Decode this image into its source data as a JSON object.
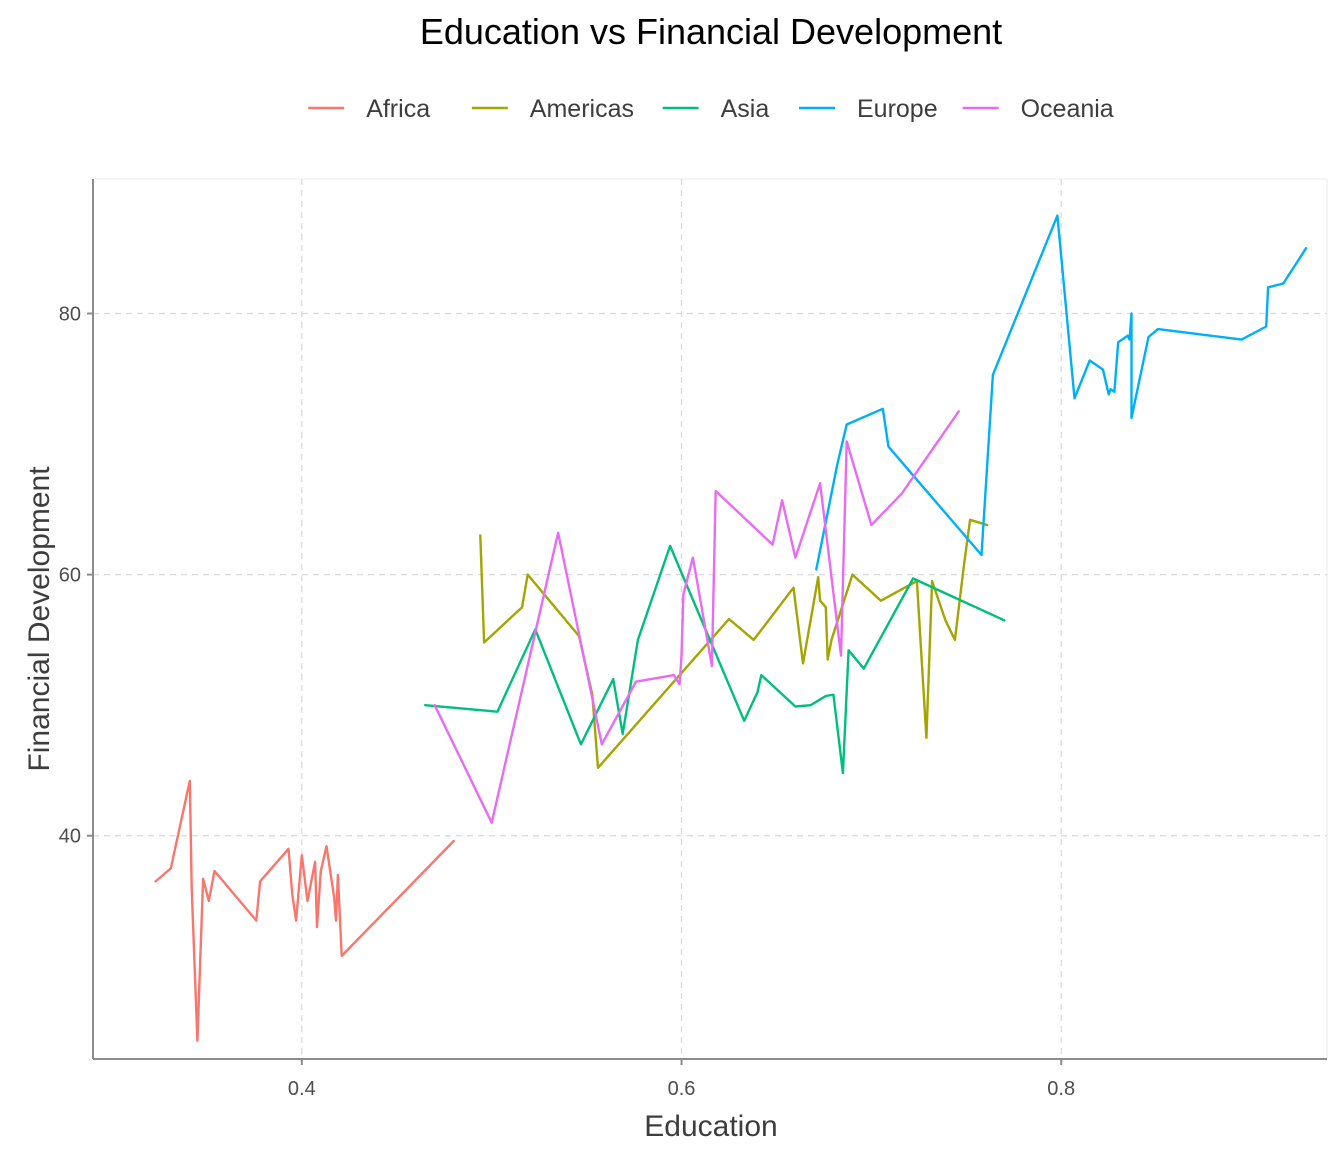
{
  "chart_data": {
    "type": "line",
    "title": "Education vs Financial Development",
    "xlabel": "Education",
    "ylabel": "Financial Development",
    "xlim": [
      0.29,
      0.94
    ],
    "ylim": [
      22.9,
      90.3
    ],
    "xticks": [
      0.4,
      0.6,
      0.8
    ],
    "xtick_labels": [
      "0.4",
      "0.6",
      "0.8"
    ],
    "yticks": [
      40,
      60,
      80
    ],
    "ytick_labels": [
      "40",
      "60",
      "80"
    ],
    "grid": true,
    "legend_position": "top",
    "series": [
      {
        "name": "Africa",
        "color": "#F8766D",
        "x": [
          0.323,
          0.331,
          0.341,
          0.342,
          0.345,
          0.348,
          0.351,
          0.354,
          0.376,
          0.378,
          0.393,
          0.395,
          0.397,
          0.4,
          0.403,
          0.407,
          0.408,
          0.41,
          0.413,
          0.417,
          0.418,
          0.419,
          0.421,
          0.48
        ],
        "y": [
          36.5,
          37.5,
          44.2,
          36.0,
          24.3,
          36.7,
          35.0,
          37.3,
          33.5,
          36.5,
          39.0,
          35.5,
          33.5,
          38.5,
          35.0,
          38.0,
          33.0,
          37.3,
          39.2,
          35.3,
          33.5,
          37.0,
          30.8,
          39.6
        ]
      },
      {
        "name": "Americas",
        "color": "#A3A500",
        "x": [
          0.494,
          0.496,
          0.516,
          0.519,
          0.546,
          0.553,
          0.556,
          0.625,
          0.638,
          0.659,
          0.664,
          0.672,
          0.673,
          0.676,
          0.677,
          0.679,
          0.69,
          0.705,
          0.724,
          0.729,
          0.732,
          0.739,
          0.744,
          0.749,
          0.752,
          0.761
        ],
        "y": [
          63.0,
          54.8,
          57.5,
          60.0,
          55.3,
          50.8,
          45.2,
          56.6,
          55.0,
          59.0,
          53.2,
          59.8,
          58.0,
          57.5,
          53.5,
          55.0,
          60.0,
          58.0,
          59.5,
          47.5,
          59.5,
          56.5,
          55.0,
          61.0,
          64.2,
          63.8
        ]
      },
      {
        "name": "Asia",
        "color": "#00BF7D",
        "x": [
          0.465,
          0.503,
          0.523,
          0.547,
          0.564,
          0.569,
          0.577,
          0.594,
          0.633,
          0.64,
          0.642,
          0.66,
          0.668,
          0.676,
          0.68,
          0.685,
          0.688,
          0.696,
          0.722,
          0.77
        ],
        "y": [
          50.0,
          49.5,
          55.8,
          47.0,
          52.0,
          47.8,
          55.0,
          62.2,
          48.8,
          51.0,
          52.3,
          49.9,
          50.0,
          50.7,
          50.8,
          44.8,
          54.2,
          52.8,
          59.7,
          56.5
        ]
      },
      {
        "name": "Europe",
        "color": "#00B0F6",
        "x": [
          0.671,
          0.682,
          0.687,
          0.706,
          0.709,
          0.758,
          0.764,
          0.798,
          0.807,
          0.815,
          0.822,
          0.825,
          0.826,
          0.828,
          0.83,
          0.835,
          0.836,
          0.837,
          0.837,
          0.846,
          0.851,
          0.895,
          0.908,
          0.909,
          0.917,
          0.929
        ],
        "y": [
          60.4,
          68.4,
          71.5,
          72.7,
          69.8,
          61.5,
          75.3,
          87.5,
          73.5,
          76.4,
          75.7,
          73.8,
          74.2,
          74.0,
          77.8,
          78.3,
          78.0,
          80.0,
          72.0,
          78.2,
          78.8,
          78.0,
          79.0,
          82.0,
          82.3,
          85.0
        ]
      },
      {
        "name": "Oceania",
        "color": "#E76BF3",
        "x": [
          0.47,
          0.5,
          0.535,
          0.558,
          0.576,
          0.596,
          0.599,
          0.6,
          0.601,
          0.606,
          0.616,
          0.618,
          0.637,
          0.648,
          0.653,
          0.66,
          0.673,
          0.684,
          0.687,
          0.7,
          0.716,
          0.746
        ],
        "y": [
          50.0,
          41.0,
          63.2,
          47.0,
          51.8,
          52.3,
          51.6,
          53.8,
          58.5,
          61.3,
          53.0,
          66.4,
          63.8,
          62.3,
          65.7,
          61.3,
          67.0,
          53.8,
          70.2,
          63.8,
          66.2,
          72.5
        ]
      }
    ]
  }
}
